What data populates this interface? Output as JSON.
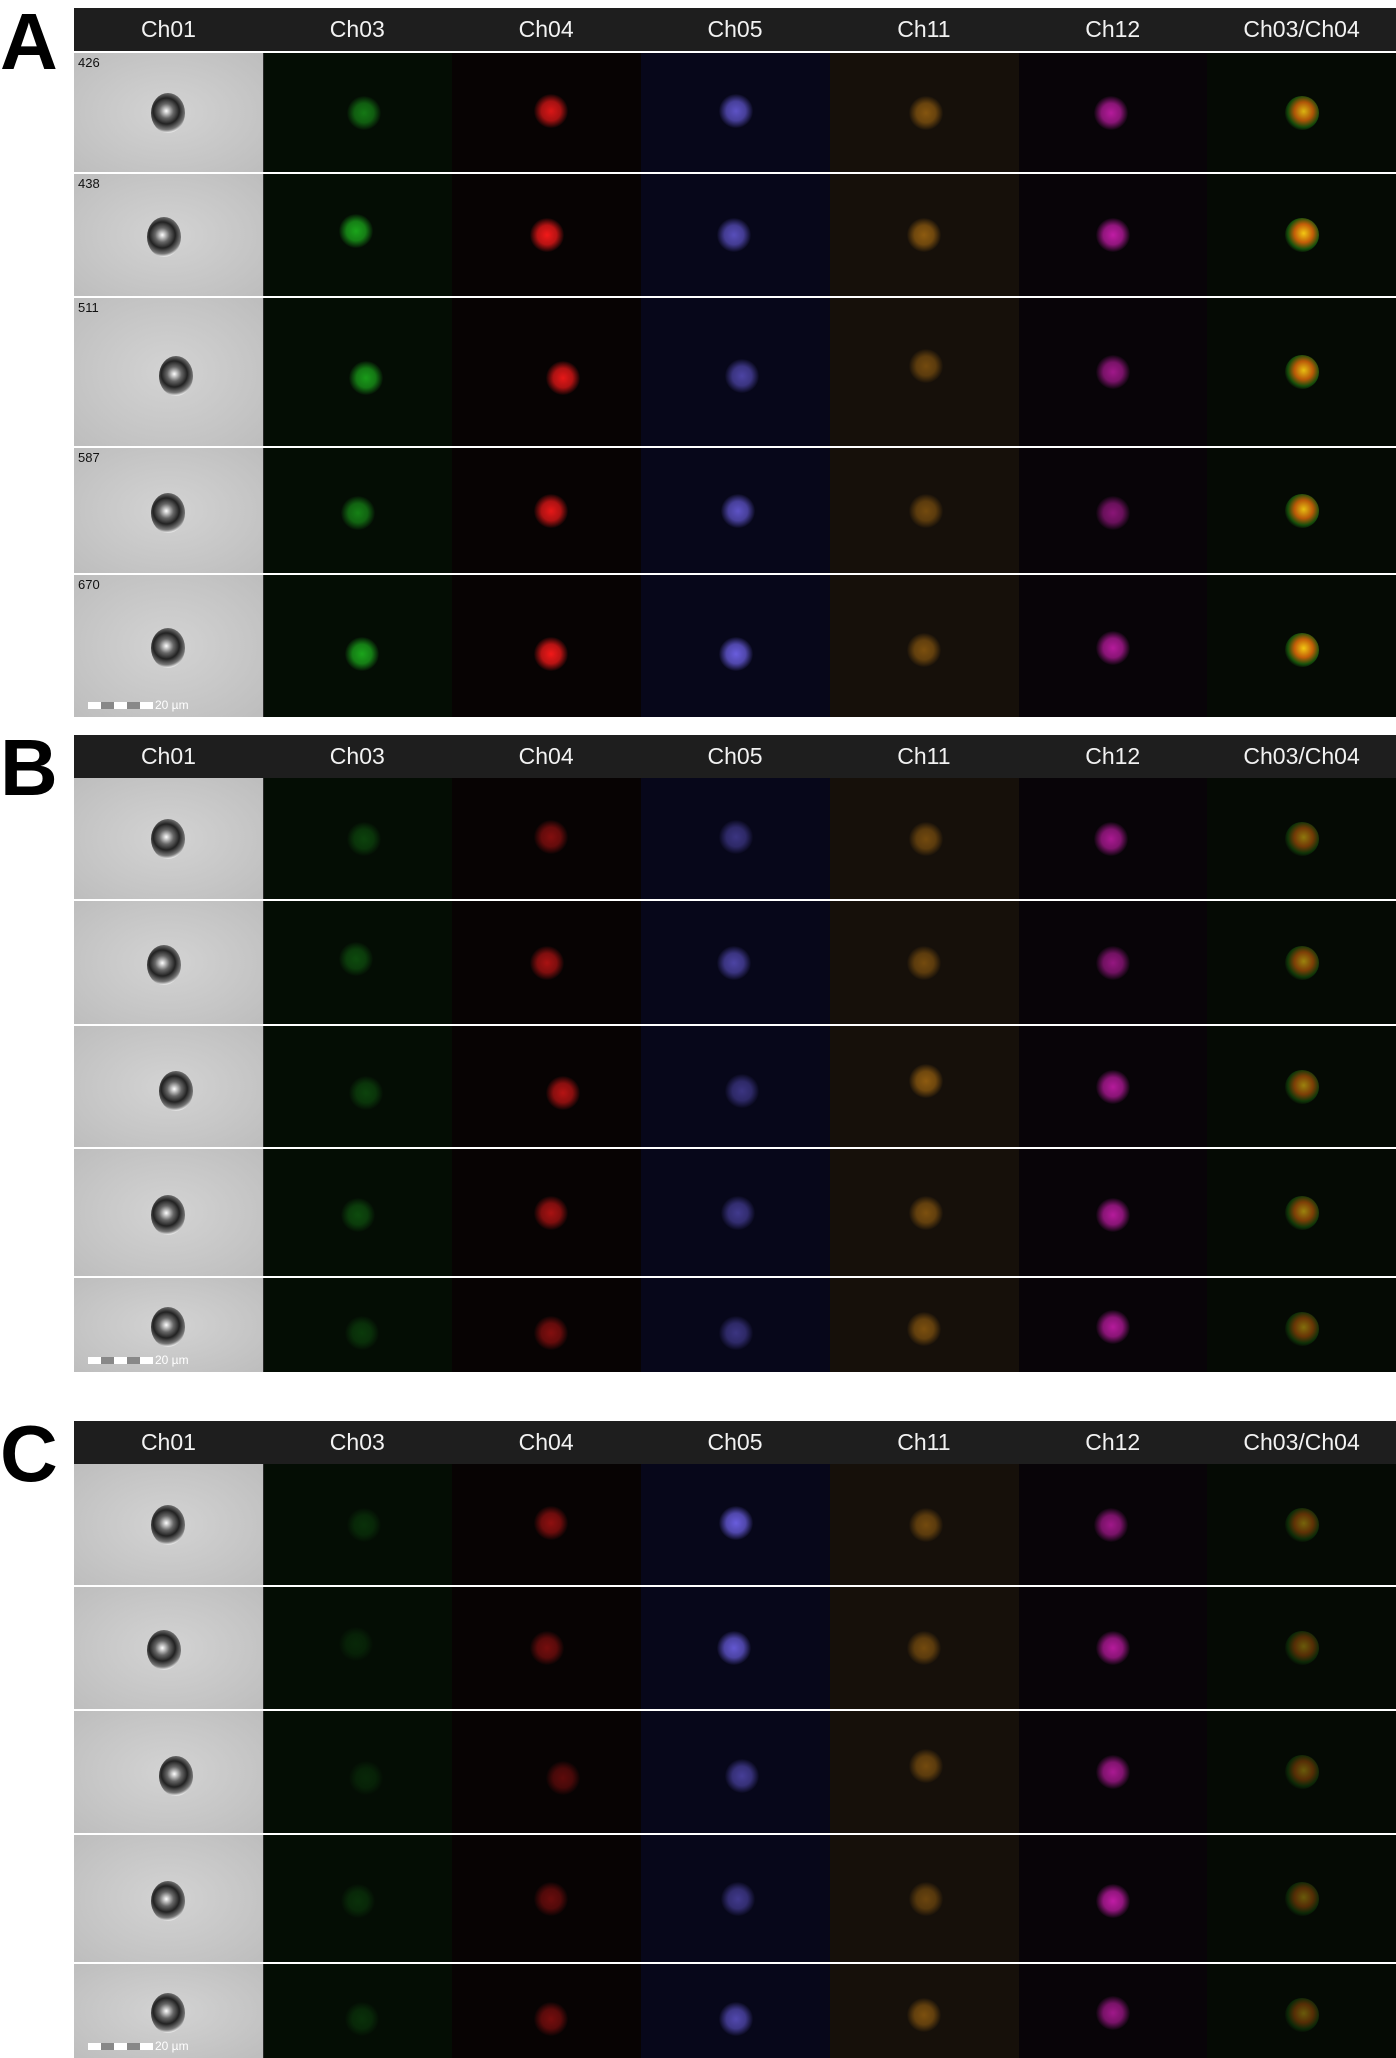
{
  "channels": [
    "Ch01",
    "Ch03",
    "Ch04",
    "Ch05",
    "Ch11",
    "Ch12",
    "Ch03/Ch04"
  ],
  "channel_colors": [
    "#bdbdbd",
    "#1fbf1f",
    "#ff1a1a",
    "#7a6cff",
    "#c07a12",
    "#e020c0",
    "#e0a010"
  ],
  "channel_backgrounds": [
    "#c9c9c9",
    "#040d04",
    "#070303",
    "#07071a",
    "#16100a",
    "#080408",
    "#050a04"
  ],
  "scale_label": "20 µm",
  "panels": [
    {
      "letter": "A",
      "rows": [
        {
          "id": "426",
          "intensity": [
            1,
            0.6,
            0.85,
            0.75,
            0.65,
            0.8,
            0.85
          ]
        },
        {
          "id": "438",
          "intensity": [
            1,
            0.85,
            0.95,
            0.7,
            0.7,
            0.85,
            0.95
          ]
        },
        {
          "id": "511",
          "intensity": [
            1,
            0.8,
            0.9,
            0.6,
            0.55,
            0.7,
            0.9
          ]
        },
        {
          "id": "587",
          "intensity": [
            1,
            0.65,
            0.9,
            0.75,
            0.55,
            0.6,
            0.9
          ]
        },
        {
          "id": "670",
          "intensity": [
            1,
            0.85,
            0.95,
            0.85,
            0.6,
            0.8,
            0.95
          ]
        }
      ],
      "show_scale": true
    },
    {
      "letter": "B",
      "rows": [
        {
          "id": "",
          "intensity": [
            1,
            0.3,
            0.5,
            0.45,
            0.55,
            0.75,
            0.55
          ]
        },
        {
          "id": "",
          "intensity": [
            1,
            0.35,
            0.65,
            0.6,
            0.55,
            0.65,
            0.6
          ]
        },
        {
          "id": "",
          "intensity": [
            1,
            0.3,
            0.7,
            0.45,
            0.7,
            0.8,
            0.6
          ]
        },
        {
          "id": "",
          "intensity": [
            1,
            0.35,
            0.65,
            0.5,
            0.6,
            0.8,
            0.6
          ]
        },
        {
          "id": "",
          "intensity": [
            1,
            0.25,
            0.5,
            0.45,
            0.6,
            0.8,
            0.5
          ]
        }
      ],
      "show_scale": true
    },
    {
      "letter": "C",
      "rows": [
        {
          "id": "",
          "intensity": [
            1,
            0.2,
            0.55,
            0.85,
            0.55,
            0.7,
            0.45
          ]
        },
        {
          "id": "",
          "intensity": [
            1,
            0.15,
            0.45,
            0.8,
            0.55,
            0.8,
            0.4
          ]
        },
        {
          "id": "",
          "intensity": [
            1,
            0.15,
            0.35,
            0.55,
            0.55,
            0.75,
            0.4
          ]
        },
        {
          "id": "",
          "intensity": [
            1,
            0.2,
            0.4,
            0.5,
            0.5,
            0.85,
            0.4
          ]
        },
        {
          "id": "",
          "intensity": [
            1,
            0.2,
            0.45,
            0.65,
            0.6,
            0.7,
            0.4
          ]
        }
      ],
      "show_scale": true
    }
  ]
}
